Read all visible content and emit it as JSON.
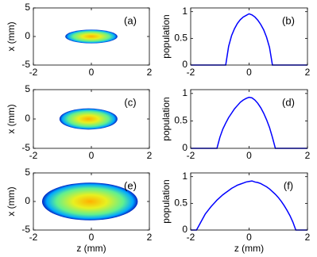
{
  "chart_data": [
    {
      "type": "image",
      "panel_label": "(a)",
      "ylabel": "x (mm)",
      "xlim": [
        -2,
        2
      ],
      "ylim": [
        -5,
        5
      ],
      "xticks": [
        -2,
        0,
        2
      ],
      "yticks": [
        -5,
        0,
        5
      ],
      "z_extent": [
        -0.9,
        0.9
      ],
      "x_extent": [
        -1.2,
        1.2
      ]
    },
    {
      "type": "line",
      "panel_label": "(b)",
      "ylabel": "population",
      "xlim": [
        -2,
        2
      ],
      "ylim": [
        0,
        1.07
      ],
      "xticks": [
        -2,
        0,
        2
      ],
      "yticks": [
        0,
        0.5,
        1
      ],
      "x": [
        -2,
        -1.9,
        -1.8,
        -1.7,
        -1.6,
        -1.5,
        -1.4,
        -1.3,
        -1.2,
        -1.1,
        -1,
        -0.9,
        -0.8,
        -0.7,
        -0.6,
        -0.5,
        -0.4,
        -0.3,
        -0.2,
        -0.1,
        0,
        0.1,
        0.2,
        0.3,
        0.4,
        0.5,
        0.6,
        0.7,
        0.8,
        0.9,
        1,
        1.1,
        1.2,
        1.3,
        1.4,
        1.5,
        1.6,
        1.7,
        1.8,
        1.9,
        2
      ],
      "series": [
        {
          "color": "#0000ff",
          "values": [
            0,
            0,
            0,
            0,
            0,
            0,
            0,
            0,
            0,
            0,
            0,
            0,
            0,
            0.35,
            0.55,
            0.68,
            0.78,
            0.85,
            0.9,
            0.93,
            0.96,
            0.94,
            0.9,
            0.84,
            0.76,
            0.66,
            0.52,
            0.33,
            0,
            0,
            0,
            0,
            0,
            0,
            0,
            0,
            0,
            0,
            0,
            0,
            0
          ]
        }
      ]
    },
    {
      "type": "image",
      "panel_label": "(c)",
      "ylabel": "x (mm)",
      "xlim": [
        -2,
        2
      ],
      "ylim": [
        -5,
        5
      ],
      "xticks": [
        -2,
        0,
        2
      ],
      "yticks": [
        -5,
        0,
        5
      ],
      "z_extent": [
        -1.1,
        0.9
      ],
      "x_extent": [
        -1.8,
        1.8
      ]
    },
    {
      "type": "line",
      "panel_label": "(d)",
      "ylabel": "population",
      "xlim": [
        -2,
        2
      ],
      "ylim": [
        0,
        1.07
      ],
      "xticks": [
        -2,
        0,
        2
      ],
      "yticks": [
        0,
        0.5,
        1
      ],
      "x": [
        -2,
        -1.9,
        -1.8,
        -1.7,
        -1.6,
        -1.5,
        -1.4,
        -1.3,
        -1.2,
        -1.1,
        -1,
        -0.9,
        -0.8,
        -0.7,
        -0.6,
        -0.5,
        -0.4,
        -0.3,
        -0.2,
        -0.1,
        0,
        0.1,
        0.2,
        0.3,
        0.4,
        0.5,
        0.6,
        0.7,
        0.8,
        0.9,
        1,
        1.1,
        1.2,
        1.3,
        1.4,
        1.5,
        1.6,
        1.7,
        1.8,
        1.9,
        2
      ],
      "series": [
        {
          "color": "#0000ff",
          "values": [
            0,
            0,
            0,
            0,
            0,
            0,
            0,
            0,
            0,
            0,
            0.2,
            0.35,
            0.46,
            0.56,
            0.64,
            0.72,
            0.78,
            0.84,
            0.88,
            0.91,
            0.93,
            0.92,
            0.88,
            0.82,
            0.74,
            0.64,
            0.52,
            0.38,
            0.2,
            0,
            0,
            0,
            0,
            0,
            0,
            0,
            0,
            0,
            0,
            0,
            0
          ]
        }
      ]
    },
    {
      "type": "image",
      "panel_label": "(e)",
      "ylabel": "x (mm)",
      "xlabel": "z (mm)",
      "xlim": [
        -2,
        2
      ],
      "ylim": [
        -5,
        5
      ],
      "xticks": [
        -2,
        0,
        2
      ],
      "yticks": [
        -5,
        0,
        5
      ],
      "z_extent": [
        -1.7,
        1.6
      ],
      "x_extent": [
        -3.3,
        3.3
      ]
    },
    {
      "type": "line",
      "panel_label": "(f)",
      "ylabel": "population",
      "xlabel": "z (mm)",
      "xlim": [
        -2,
        2
      ],
      "ylim": [
        0,
        1.07
      ],
      "xticks": [
        -2,
        0,
        2
      ],
      "yticks": [
        0,
        0.5,
        1
      ],
      "x": [
        -2,
        -1.9,
        -1.8,
        -1.7,
        -1.6,
        -1.5,
        -1.4,
        -1.3,
        -1.2,
        -1.1,
        -1,
        -0.9,
        -0.8,
        -0.7,
        -0.6,
        -0.5,
        -0.4,
        -0.3,
        -0.2,
        -0.1,
        0,
        0.1,
        0.2,
        0.3,
        0.4,
        0.5,
        0.6,
        0.7,
        0.8,
        0.9,
        1,
        1.1,
        1.2,
        1.3,
        1.4,
        1.5,
        1.6,
        1.7,
        1.8,
        1.9,
        2
      ],
      "series": [
        {
          "color": "#0000ff",
          "values": [
            0,
            0,
            0,
            0.1,
            0.2,
            0.3,
            0.37,
            0.44,
            0.5,
            0.56,
            0.61,
            0.66,
            0.7,
            0.74,
            0.78,
            0.81,
            0.84,
            0.86,
            0.88,
            0.9,
            0.91,
            0.92,
            0.9,
            0.89,
            0.87,
            0.84,
            0.81,
            0.77,
            0.72,
            0.67,
            0.61,
            0.54,
            0.46,
            0.37,
            0.27,
            0.15,
            0,
            0,
            0,
            0,
            0
          ]
        }
      ]
    }
  ]
}
